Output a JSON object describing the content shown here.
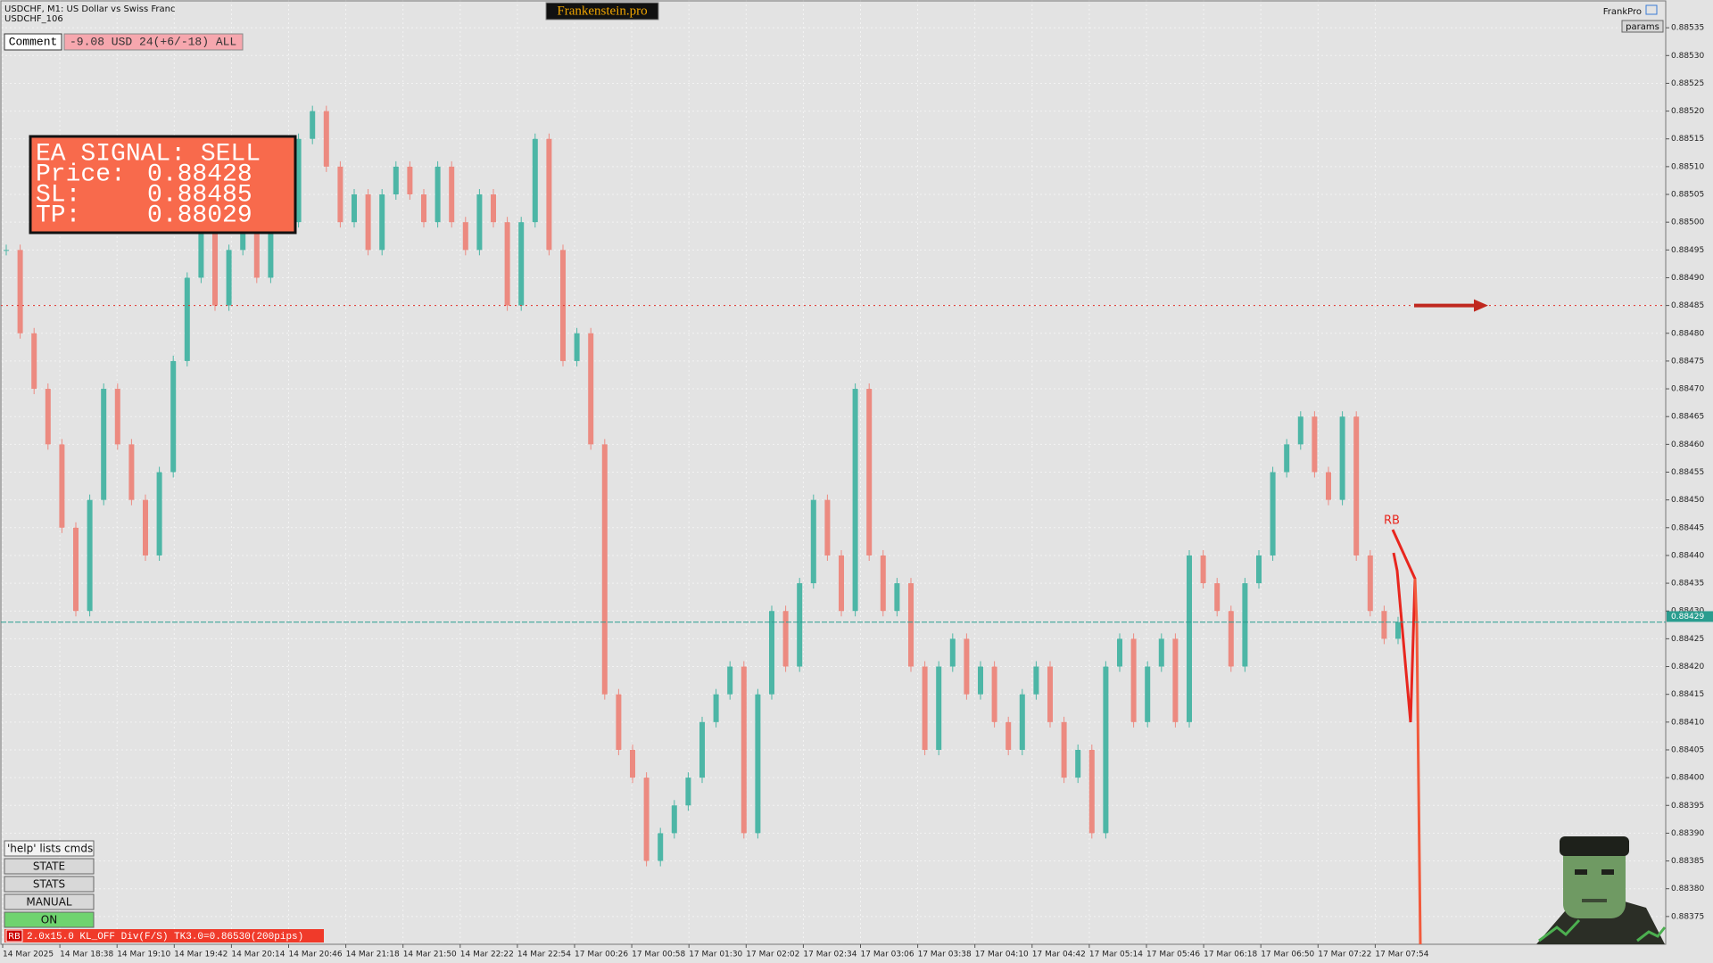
{
  "header": {
    "symbol_line": "USDCHF, M1:  US Dollar vs Swiss Franc",
    "account": "USDCHF_106",
    "brand": "Frankenstein.pro",
    "profile": "FrankPro",
    "params": "params"
  },
  "comment": {
    "label": "Comment",
    "text": "-9.08 USD 24(+6/-18) ALL"
  },
  "signal": {
    "title": "EA SIGNAL: SELL",
    "rows": [
      {
        "label": "Price:",
        "value": 0.88428
      },
      {
        "label": "SL:",
        "value": 0.88485
      },
      {
        "label": "TP:",
        "value": 0.88029
      }
    ]
  },
  "buttons": [
    "'help' lists cmds",
    "STATE",
    "STATS",
    "MANUAL",
    "ON"
  ],
  "status": {
    "tag": "RB",
    "text": "2.0x15.0 KL_OFF Div(F/S) TK3.0=0.86530(200pips)"
  },
  "indicator_label": "RB",
  "chart_data": {
    "type": "candlestick",
    "up_color": "#4db6a6",
    "down_color": "#ec8a80",
    "grid": true,
    "bid": 0.88429,
    "ylim": [
      0.8837,
      0.8854
    ],
    "yticks": [
      0.88375,
      {
        "value": 0.8838,
        "label": "0.88380"
      },
      0.88385,
      {
        "value": 0.8839,
        "label": "0.88390"
      },
      0.88395,
      {
        "value": 0.884,
        "label": "0.88400"
      },
      0.88405,
      {
        "value": 0.8841,
        "label": "0.88410"
      },
      0.88415,
      {
        "value": 0.8842,
        "label": "0.88420"
      },
      0.88425,
      {
        "value": 0.8843,
        "label": "0.88430"
      },
      0.88435,
      {
        "value": 0.8844,
        "label": "0.88440"
      },
      0.88445,
      {
        "value": 0.8845,
        "label": "0.88450"
      },
      0.88455,
      {
        "value": 0.8846,
        "label": "0.88460"
      },
      0.88465,
      {
        "value": 0.8847,
        "label": "0.88470"
      },
      0.88475,
      {
        "value": 0.8848,
        "label": "0.88480"
      },
      0.88485,
      {
        "value": 0.8849,
        "label": "0.88490"
      },
      0.88495,
      {
        "value": 0.885,
        "label": "0.88500"
      },
      0.88505,
      {
        "value": 0.8851,
        "label": "0.88510"
      },
      0.88515,
      {
        "value": 0.8852,
        "label": "0.88520"
      },
      0.88525,
      {
        "value": 0.8853,
        "label": "0.88530"
      },
      0.88535
    ],
    "time_labels": [
      "14 Mar 2025",
      "14 Mar 18:38",
      "14 Mar 19:10",
      "14 Mar 19:42",
      "14 Mar 20:14",
      "14 Mar 20:46",
      "14 Mar 21:18",
      "14 Mar 21:50",
      "14 Mar 22:22",
      "14 Mar 22:54",
      "17 Mar 00:26",
      "17 Mar 00:58",
      "17 Mar 01:30",
      "17 Mar 02:02",
      "17 Mar 02:34",
      "17 Mar 03:06",
      "17 Mar 03:38",
      "17 Mar 04:10",
      "17 Mar 04:42",
      "17 Mar 05:14",
      "17 Mar 05:46",
      "17 Mar 06:18",
      "17 Mar 06:50",
      "17 Mar 07:22",
      "17 Mar 07:54"
    ],
    "closes": [
      0.88495,
      0.8848,
      0.8847,
      0.8846,
      0.88445,
      0.8843,
      0.8845,
      0.8847,
      0.8846,
      0.8845,
      0.8844,
      0.88455,
      0.88475,
      0.8849,
      0.885,
      0.88485,
      0.88495,
      0.885,
      0.8849,
      0.88505,
      0.885,
      0.88515,
      0.8852,
      0.8851,
      0.885,
      0.88505,
      0.88495,
      0.88505,
      0.8851,
      0.88505,
      0.885,
      0.8851,
      0.885,
      0.88495,
      0.88505,
      0.885,
      0.88485,
      0.885,
      0.88515,
      0.88495,
      0.88475,
      0.8848,
      0.8846,
      0.88415,
      0.88405,
      0.884,
      0.88385,
      0.8839,
      0.88395,
      0.884,
      0.8841,
      0.88415,
      0.8842,
      0.8839,
      0.88415,
      0.8843,
      0.8842,
      0.88435,
      0.8845,
      0.8844,
      0.8843,
      0.8847,
      0.8844,
      0.8843,
      0.88435,
      0.8842,
      0.88405,
      0.8842,
      0.88425,
      0.88415,
      0.8842,
      0.8841,
      0.88405,
      0.88415,
      0.8842,
      0.8841,
      0.884,
      0.88405,
      0.8839,
      0.8842,
      0.88425,
      0.8841,
      0.8842,
      0.88425,
      0.8841,
      0.8844,
      0.88435,
      0.8843,
      0.8842,
      0.88435,
      0.8844,
      0.88455,
      0.8846,
      0.88465,
      0.88455,
      0.8845,
      0.88465,
      0.8844,
      0.8843,
      0.88425,
      0.88428
    ]
  }
}
